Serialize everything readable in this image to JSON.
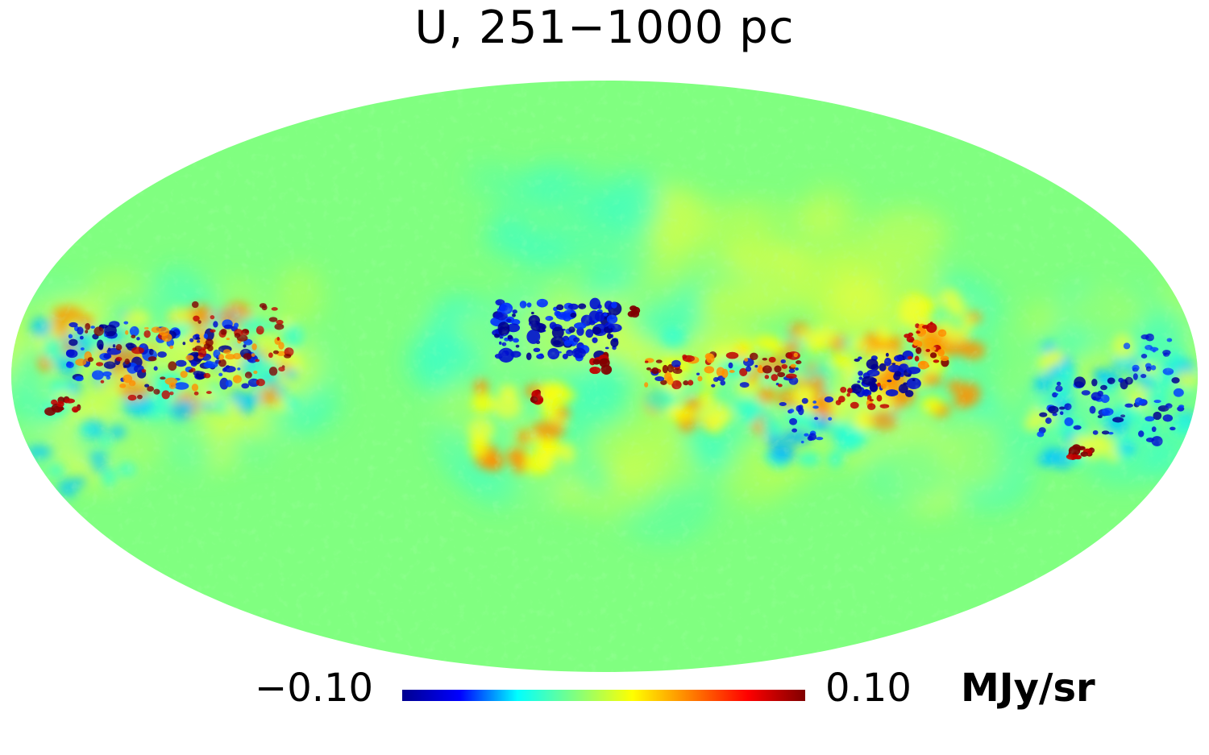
{
  "title": "U, 251−1000 pc",
  "map": {
    "projection": "mollweide",
    "background_color": "#80ff80",
    "colormap": [
      "#00008f",
      "#0000ff",
      "#00ffff",
      "#80ff80",
      "#ffff00",
      "#ff8000",
      "#ff0000",
      "#800000"
    ]
  },
  "colorbar": {
    "min_label": "−0.10",
    "max_label": "0.10",
    "unit": "MJy/sr",
    "min": -0.1,
    "max": 0.1
  }
}
